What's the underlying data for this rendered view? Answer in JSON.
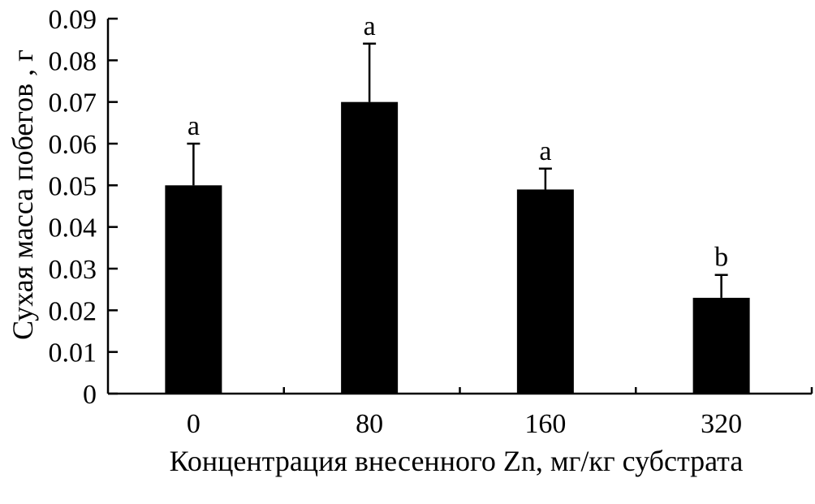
{
  "chart_data": {
    "type": "bar",
    "categories": [
      "0",
      "80",
      "160",
      "320"
    ],
    "values": [
      0.05,
      0.07,
      0.049,
      0.023
    ],
    "errors": [
      0.01,
      0.014,
      0.005,
      0.0055
    ],
    "significance": [
      "a",
      "a",
      "a",
      "b"
    ],
    "xlabel": "Концентрация внесенного Zn, мг/кг субстрата",
    "ylabel": "Сухая масса побегов , г",
    "ylim": [
      0,
      0.09
    ],
    "yticks": [
      "0",
      "0.01",
      "0.02",
      "0.03",
      "0.04",
      "0.05",
      "0.06",
      "0.07",
      "0.08",
      "0.09"
    ],
    "bar_color": "#000000",
    "grid": false
  }
}
